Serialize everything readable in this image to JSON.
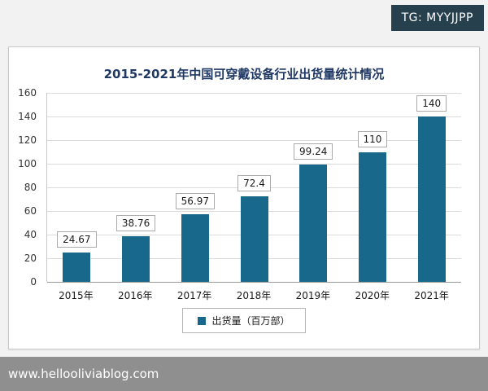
{
  "overlay": {
    "tg_badge": "TG: MYYJJPP",
    "watermark": "www.hellooliviablog.com"
  },
  "chart_data": {
    "type": "bar",
    "title": "2015-2021年中国可穿戴设备行业出货量统计情况",
    "categories": [
      "2015年",
      "2016年",
      "2017年",
      "2018年",
      "2019年",
      "2020年",
      "2021年"
    ],
    "values": [
      24.67,
      38.76,
      56.97,
      72.4,
      99.24,
      110,
      140
    ],
    "ylim": [
      0,
      160
    ],
    "ytick_step": 20,
    "legend": "出货量（百万部）",
    "bar_color": "#17688a",
    "grid": true,
    "legend_position": "bottom"
  }
}
